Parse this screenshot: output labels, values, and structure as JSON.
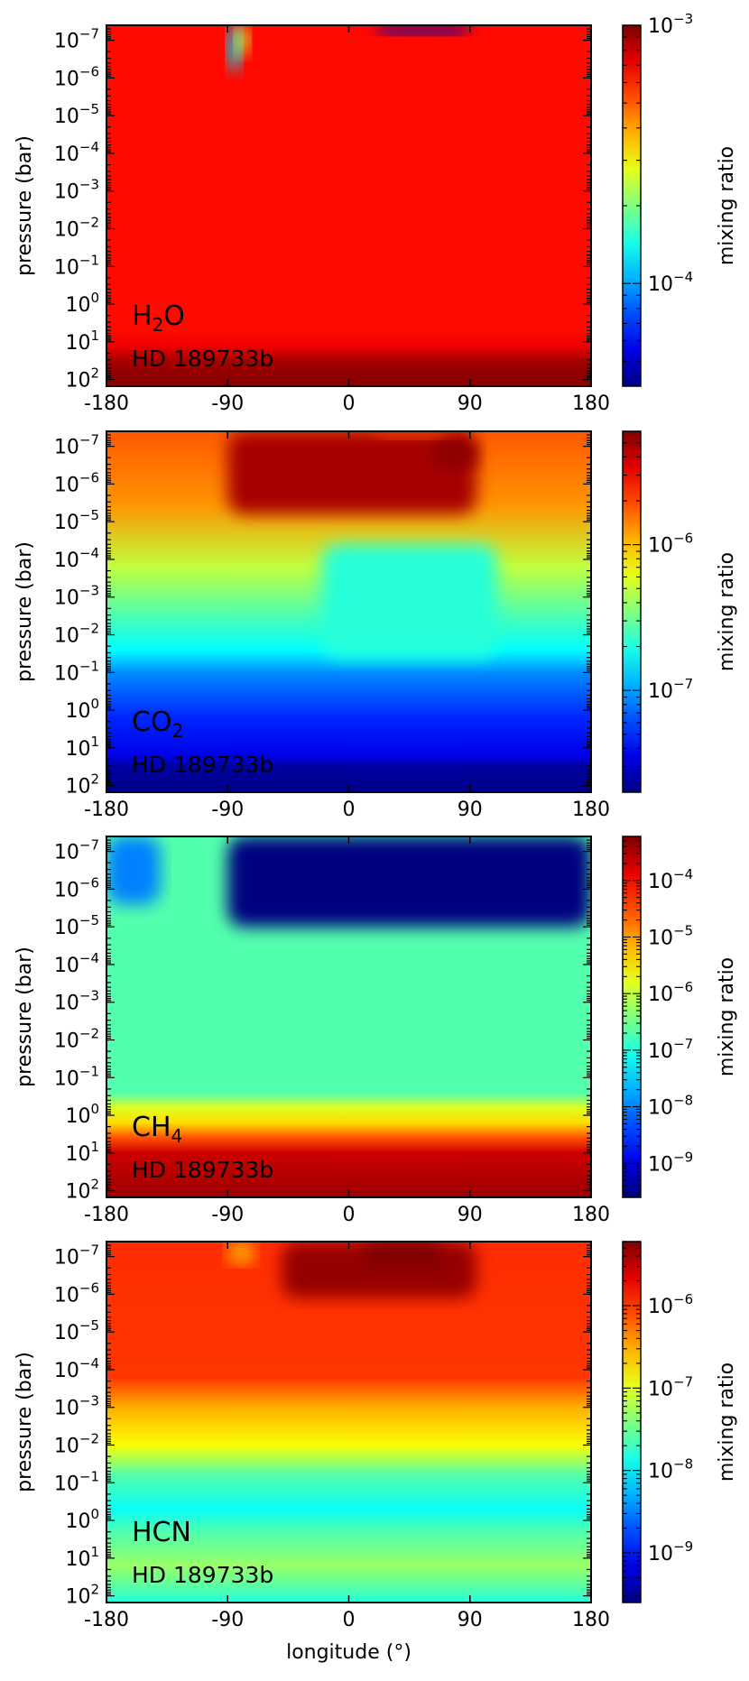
{
  "figure": {
    "xlabel": "longitude (°)",
    "ylabel": "pressure (bar)",
    "colorbar_label": "mixing ratio",
    "planet": "HD 189733b"
  },
  "chart_data": [
    {
      "type": "heatmap",
      "species": "H2O",
      "species_base": "H",
      "species_sub": "2",
      "species_tail": "O",
      "planet_label": "HD 189733b",
      "xlabel": "",
      "ylabel": "pressure (bar)",
      "xlim": [
        -180,
        180
      ],
      "xticks": [
        "-180",
        "-90",
        "0",
        "90",
        "180"
      ],
      "ylim_bar": [
        150,
        4e-08
      ],
      "yscale": "log",
      "yticks_exp": [
        -7,
        -6,
        -5,
        -4,
        -3,
        -2,
        -1,
        0,
        1,
        2
      ],
      "colorbar": {
        "label": "mixing ratio",
        "scale": "log",
        "vmin": 4e-05,
        "vmax": 0.001,
        "major_ticks_exp": [
          -4,
          -3
        ]
      },
      "field": {
        "background": 0.00065,
        "layers_log10P": [
          [
            0.7,
            0.00065
          ],
          [
            1.1,
            0.0007
          ],
          [
            1.3,
            0.00079
          ],
          [
            1.5,
            0.00088
          ],
          [
            1.8,
            0.00094
          ],
          [
            2.2,
            0.00096
          ]
        ],
        "features": [
          {
            "lon": [
              -90,
              -80
            ],
            "log10P": [
              -7.4,
              -6.2
            ],
            "value": 0.00012
          },
          {
            "lon": [
              -84,
              -74
            ],
            "log10P": [
              -7.4,
              -6.6
            ],
            "value": 0.00025
          },
          {
            "lon": [
              20,
              90
            ],
            "log10P": [
              -7.4,
              -7.15
            ],
            "value": 4.5e-05
          }
        ]
      }
    },
    {
      "type": "heatmap",
      "species": "CO2",
      "species_base": "CO",
      "species_sub": "2",
      "species_tail": "",
      "planet_label": "HD 189733b",
      "xlabel": "",
      "ylabel": "pressure (bar)",
      "xlim": [
        -180,
        180
      ],
      "xticks": [
        "-180",
        "-90",
        "0",
        "90",
        "180"
      ],
      "ylim_bar": [
        150,
        4e-08
      ],
      "yscale": "log",
      "yticks_exp": [
        -7,
        -6,
        -5,
        -4,
        -3,
        -2,
        -1,
        0,
        1,
        2
      ],
      "colorbar": {
        "label": "mixing ratio",
        "scale": "log",
        "vmin": 2e-08,
        "vmax": 6e-06,
        "major_ticks_exp": [
          -7,
          -6
        ]
      },
      "field": {
        "layers_log10P": [
          [
            -7.4,
            1.8e-06
          ],
          [
            -5.5,
            1.3e-06
          ],
          [
            -3.8,
            5e-07
          ],
          [
            -2.5,
            2.6e-07
          ],
          [
            -1.6,
            1.7e-07
          ],
          [
            -1.0,
            9e-08
          ],
          [
            0.2,
            5e-08
          ],
          [
            1.2,
            3.6e-08
          ],
          [
            1.5,
            2.4e-08
          ],
          [
            2.2,
            2.1e-08
          ]
        ],
        "features": [
          {
            "lon": [
              -90,
              95
            ],
            "log10P": [
              -7.4,
              -5.2
            ],
            "value": 4.8e-06
          },
          {
            "lon": [
              60,
              95
            ],
            "log10P": [
              -7.2,
              -6.4
            ],
            "value": 5.6e-06
          },
          {
            "lon": [
              20,
              75
            ],
            "log10P": [
              -7.4,
              -7.2
            ],
            "value": 2e-06
          },
          {
            "lon": [
              -20,
              110
            ],
            "log10P": [
              -4.4,
              -1.4
            ],
            "value": 2.1e-07
          }
        ]
      }
    },
    {
      "type": "heatmap",
      "species": "CH4",
      "species_base": "CH",
      "species_sub": "4",
      "species_tail": "",
      "planet_label": "HD 189733b",
      "xlabel": "",
      "ylabel": "pressure (bar)",
      "xlim": [
        -180,
        180
      ],
      "xticks": [
        "-180",
        "-90",
        "0",
        "90",
        "180"
      ],
      "ylim_bar": [
        150,
        4e-08
      ],
      "yscale": "log",
      "yticks_exp": [
        -7,
        -6,
        -5,
        -4,
        -3,
        -2,
        -1,
        0,
        1,
        2
      ],
      "colorbar": {
        "label": "mixing ratio",
        "scale": "log",
        "vmin": 2.5e-10,
        "vmax": 0.0006,
        "major_ticks_exp": [
          -9,
          -8,
          -7,
          -6,
          -5,
          -4
        ]
      },
      "field": {
        "layers_log10P": [
          [
            -7.4,
            2e-07
          ],
          [
            -0.6,
            2e-07
          ],
          [
            -0.2,
            1.5e-06
          ],
          [
            0.2,
            4e-06
          ],
          [
            0.6,
            3e-05
          ],
          [
            1.0,
            0.0002
          ],
          [
            2.2,
            0.0004
          ]
        ],
        "features": [
          {
            "lon": [
              -90,
              180
            ],
            "log10P": [
              -7.4,
              -5.0
            ],
            "value": 2.5e-10
          },
          {
            "lon": [
              -180,
              -140
            ],
            "log10P": [
              -7.4,
              -5.6
            ],
            "value": 1e-08
          }
        ]
      }
    },
    {
      "type": "heatmap",
      "species": "HCN",
      "species_base": "HCN",
      "species_sub": "",
      "species_tail": "",
      "planet_label": "HD 189733b",
      "xlabel": "longitude (°)",
      "ylabel": "pressure (bar)",
      "xlim": [
        -180,
        180
      ],
      "xticks": [
        "-180",
        "-90",
        "0",
        "90",
        "180"
      ],
      "ylim_bar": [
        150,
        4e-08
      ],
      "yscale": "log",
      "yticks_exp": [
        -7,
        -6,
        -5,
        -4,
        -3,
        -2,
        -1,
        0,
        1,
        2
      ],
      "colorbar": {
        "label": "mixing ratio",
        "scale": "log",
        "vmin": 2.5e-10,
        "vmax": 6e-06,
        "major_ticks_exp": [
          -9,
          -8,
          -7,
          -6
        ]
      },
      "field": {
        "layers_log10P": [
          [
            -7.4,
            1.1e-06
          ],
          [
            -3.8,
            1e-06
          ],
          [
            -3.0,
            3e-07
          ],
          [
            -2.0,
            1.3e-07
          ],
          [
            -1.2,
            2.5e-08
          ],
          [
            -0.3,
            1.2e-08
          ],
          [
            0.3,
            2.4e-08
          ],
          [
            1.2,
            5e-08
          ],
          [
            1.8,
            2.5e-08
          ],
          [
            2.2,
            1.5e-08
          ]
        ],
        "features": [
          {
            "lon": [
              -50,
              95
            ],
            "log10P": [
              -7.4,
              -5.9
            ],
            "value": 4.8e-06
          },
          {
            "lon": [
              10,
              70
            ],
            "log10P": [
              -7.4,
              -6.7
            ],
            "value": 6e-06
          },
          {
            "lon": [
              -90,
              -70
            ],
            "log10P": [
              -7.4,
              -6.8
            ],
            "value": 2.8e-07
          }
        ]
      }
    }
  ]
}
